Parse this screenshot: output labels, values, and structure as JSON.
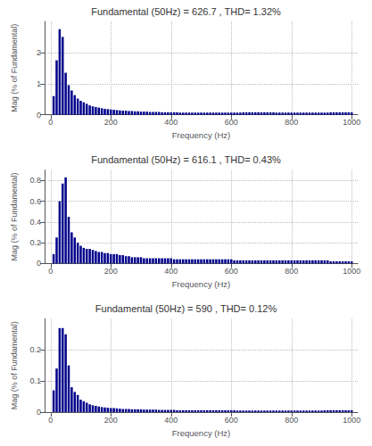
{
  "chart_data": [
    {
      "type": "bar",
      "title": "Fundamental (50Hz) = 626.7 , THD= 1.32%",
      "xlabel": "Frequency (Hz)",
      "ylabel": "Mag (% of Fundamental)",
      "color": "#00008B",
      "grid": true,
      "xlim": [
        -20,
        1020
      ],
      "xticks": [
        0,
        200,
        400,
        600,
        800,
        1000
      ],
      "ylim": [
        0,
        3.0
      ],
      "yticks": [
        0,
        1,
        2
      ],
      "x": [
        10,
        20,
        30,
        40,
        50,
        60,
        70,
        80,
        90,
        100,
        110,
        120,
        130,
        140,
        150,
        160,
        170,
        180,
        190,
        200,
        210,
        220,
        230,
        240,
        250,
        260,
        270,
        280,
        290,
        300,
        310,
        320,
        330,
        340,
        350,
        360,
        370,
        380,
        390,
        400,
        410,
        420,
        430,
        440,
        450,
        460,
        470,
        480,
        490,
        500,
        510,
        520,
        530,
        540,
        550,
        560,
        570,
        580,
        590,
        600,
        610,
        620,
        630,
        640,
        650,
        660,
        670,
        680,
        690,
        700,
        710,
        720,
        730,
        740,
        750,
        760,
        770,
        780,
        790,
        800,
        810,
        820,
        830,
        840,
        850,
        860,
        870,
        880,
        890,
        900,
        910,
        920,
        930,
        940,
        950,
        960,
        970,
        980,
        990,
        1000
      ],
      "values": [
        0.6,
        1.75,
        2.75,
        2.5,
        1.35,
        0.95,
        0.78,
        0.63,
        0.52,
        0.45,
        0.4,
        0.35,
        0.3,
        0.27,
        0.25,
        0.23,
        0.21,
        0.19,
        0.18,
        0.17,
        0.16,
        0.15,
        0.14,
        0.13,
        0.13,
        0.12,
        0.12,
        0.11,
        0.11,
        0.1,
        0.1,
        0.1,
        0.09,
        0.09,
        0.09,
        0.09,
        0.08,
        0.08,
        0.08,
        0.08,
        0.08,
        0.08,
        0.07,
        0.07,
        0.07,
        0.07,
        0.07,
        0.07,
        0.07,
        0.07,
        0.07,
        0.07,
        0.07,
        0.07,
        0.07,
        0.07,
        0.07,
        0.07,
        0.07,
        0.07,
        0.07,
        0.07,
        0.07,
        0.08,
        0.08,
        0.08,
        0.08,
        0.08,
        0.08,
        0.08,
        0.08,
        0.08,
        0.08,
        0.08,
        0.07,
        0.07,
        0.07,
        0.07,
        0.07,
        0.07,
        0.07,
        0.07,
        0.07,
        0.07,
        0.07,
        0.07,
        0.07,
        0.07,
        0.07,
        0.07,
        0.07,
        0.07,
        0.08,
        0.08,
        0.08,
        0.08,
        0.08,
        0.08,
        0.08,
        0.08
      ]
    },
    {
      "type": "bar",
      "title": "Fundamental (50Hz) = 616.1 , THD= 0.43%",
      "xlabel": "Frequency (Hz)",
      "ylabel": "Mag (% of Fundamental)",
      "color": "#00008B",
      "grid": true,
      "xlim": [
        -20,
        1020
      ],
      "xticks": [
        0,
        200,
        400,
        600,
        800,
        1000
      ],
      "ylim": [
        0,
        0.9
      ],
      "yticks": [
        0,
        0.2,
        0.4,
        0.6,
        0.8
      ],
      "x": [
        10,
        20,
        30,
        40,
        50,
        60,
        70,
        80,
        90,
        100,
        110,
        120,
        130,
        140,
        150,
        160,
        170,
        180,
        190,
        200,
        210,
        220,
        230,
        240,
        250,
        260,
        270,
        280,
        290,
        300,
        310,
        320,
        330,
        340,
        350,
        360,
        370,
        380,
        390,
        400,
        410,
        420,
        430,
        440,
        450,
        460,
        470,
        480,
        490,
        500,
        510,
        520,
        530,
        540,
        550,
        560,
        570,
        580,
        590,
        600,
        610,
        620,
        630,
        640,
        650,
        660,
        670,
        680,
        690,
        700,
        710,
        720,
        730,
        740,
        750,
        760,
        770,
        780,
        790,
        800,
        810,
        820,
        830,
        840,
        850,
        860,
        870,
        880,
        890,
        900,
        910,
        920,
        930,
        940,
        950,
        960,
        970,
        980,
        990,
        1000
      ],
      "values": [
        0.09,
        0.25,
        0.6,
        0.77,
        0.83,
        0.45,
        0.3,
        0.25,
        0.2,
        0.17,
        0.15,
        0.14,
        0.14,
        0.13,
        0.12,
        0.11,
        0.11,
        0.1,
        0.1,
        0.09,
        0.09,
        0.09,
        0.08,
        0.08,
        0.07,
        0.07,
        0.06,
        0.06,
        0.06,
        0.06,
        0.05,
        0.05,
        0.05,
        0.05,
        0.05,
        0.05,
        0.05,
        0.05,
        0.05,
        0.05,
        0.04,
        0.04,
        0.04,
        0.04,
        0.04,
        0.04,
        0.04,
        0.04,
        0.04,
        0.04,
        0.04,
        0.04,
        0.04,
        0.04,
        0.04,
        0.04,
        0.04,
        0.04,
        0.04,
        0.04,
        0.03,
        0.03,
        0.03,
        0.03,
        0.03,
        0.03,
        0.03,
        0.03,
        0.03,
        0.03,
        0.03,
        0.03,
        0.03,
        0.03,
        0.03,
        0.03,
        0.03,
        0.03,
        0.03,
        0.03,
        0.03,
        0.03,
        0.03,
        0.03,
        0.03,
        0.03,
        0.03,
        0.03,
        0.03,
        0.03,
        0.03,
        0.03,
        0.02,
        0.02,
        0.02,
        0.02,
        0.02,
        0.02,
        0.02,
        0.02
      ]
    },
    {
      "type": "bar",
      "title": "Fundamental (50Hz) = 590 , THD= 0.12%",
      "xlabel": "Frequency (Hz)",
      "ylabel": "Mag (% of Fundamental)",
      "color": "#00008B",
      "grid": true,
      "xlim": [
        -20,
        1020
      ],
      "xticks": [
        0,
        200,
        400,
        600,
        800,
        1000
      ],
      "ylim": [
        0,
        0.3
      ],
      "yticks": [
        0,
        0.1,
        0.2
      ],
      "x": [
        10,
        20,
        30,
        40,
        50,
        60,
        70,
        80,
        90,
        100,
        110,
        120,
        130,
        140,
        150,
        160,
        170,
        180,
        190,
        200,
        210,
        220,
        230,
        240,
        250,
        260,
        270,
        280,
        290,
        300,
        310,
        320,
        330,
        340,
        350,
        360,
        370,
        380,
        390,
        400,
        410,
        420,
        430,
        440,
        450,
        460,
        470,
        480,
        490,
        500,
        510,
        520,
        530,
        540,
        550,
        560,
        570,
        580,
        590,
        600,
        610,
        620,
        630,
        640,
        650,
        660,
        670,
        680,
        690,
        700,
        710,
        720,
        730,
        740,
        750,
        760,
        770,
        780,
        790,
        800,
        810,
        820,
        830,
        840,
        850,
        860,
        870,
        880,
        890,
        900,
        910,
        920,
        930,
        940,
        950,
        960,
        970,
        980,
        990,
        1000
      ],
      "values": [
        0.07,
        0.14,
        0.27,
        0.27,
        0.25,
        0.15,
        0.08,
        0.065,
        0.055,
        0.04,
        0.035,
        0.03,
        0.025,
        0.022,
        0.02,
        0.018,
        0.016,
        0.015,
        0.014,
        0.013,
        0.013,
        0.012,
        0.011,
        0.01,
        0.01,
        0.01,
        0.009,
        0.009,
        0.009,
        0.009,
        0.008,
        0.008,
        0.008,
        0.008,
        0.008,
        0.007,
        0.007,
        0.007,
        0.007,
        0.007,
        0.007,
        0.006,
        0.006,
        0.006,
        0.006,
        0.006,
        0.006,
        0.006,
        0.006,
        0.006,
        0.006,
        0.006,
        0.006,
        0.006,
        0.006,
        0.006,
        0.006,
        0.006,
        0.006,
        0.006,
        0.006,
        0.005,
        0.005,
        0.005,
        0.005,
        0.005,
        0.005,
        0.005,
        0.005,
        0.005,
        0.005,
        0.005,
        0.005,
        0.005,
        0.005,
        0.005,
        0.005,
        0.005,
        0.005,
        0.005,
        0.005,
        0.005,
        0.005,
        0.005,
        0.005,
        0.005,
        0.005,
        0.005,
        0.005,
        0.005,
        0.006,
        0.006,
        0.006,
        0.006,
        0.006,
        0.006,
        0.006,
        0.006,
        0.006,
        0.006
      ]
    }
  ]
}
